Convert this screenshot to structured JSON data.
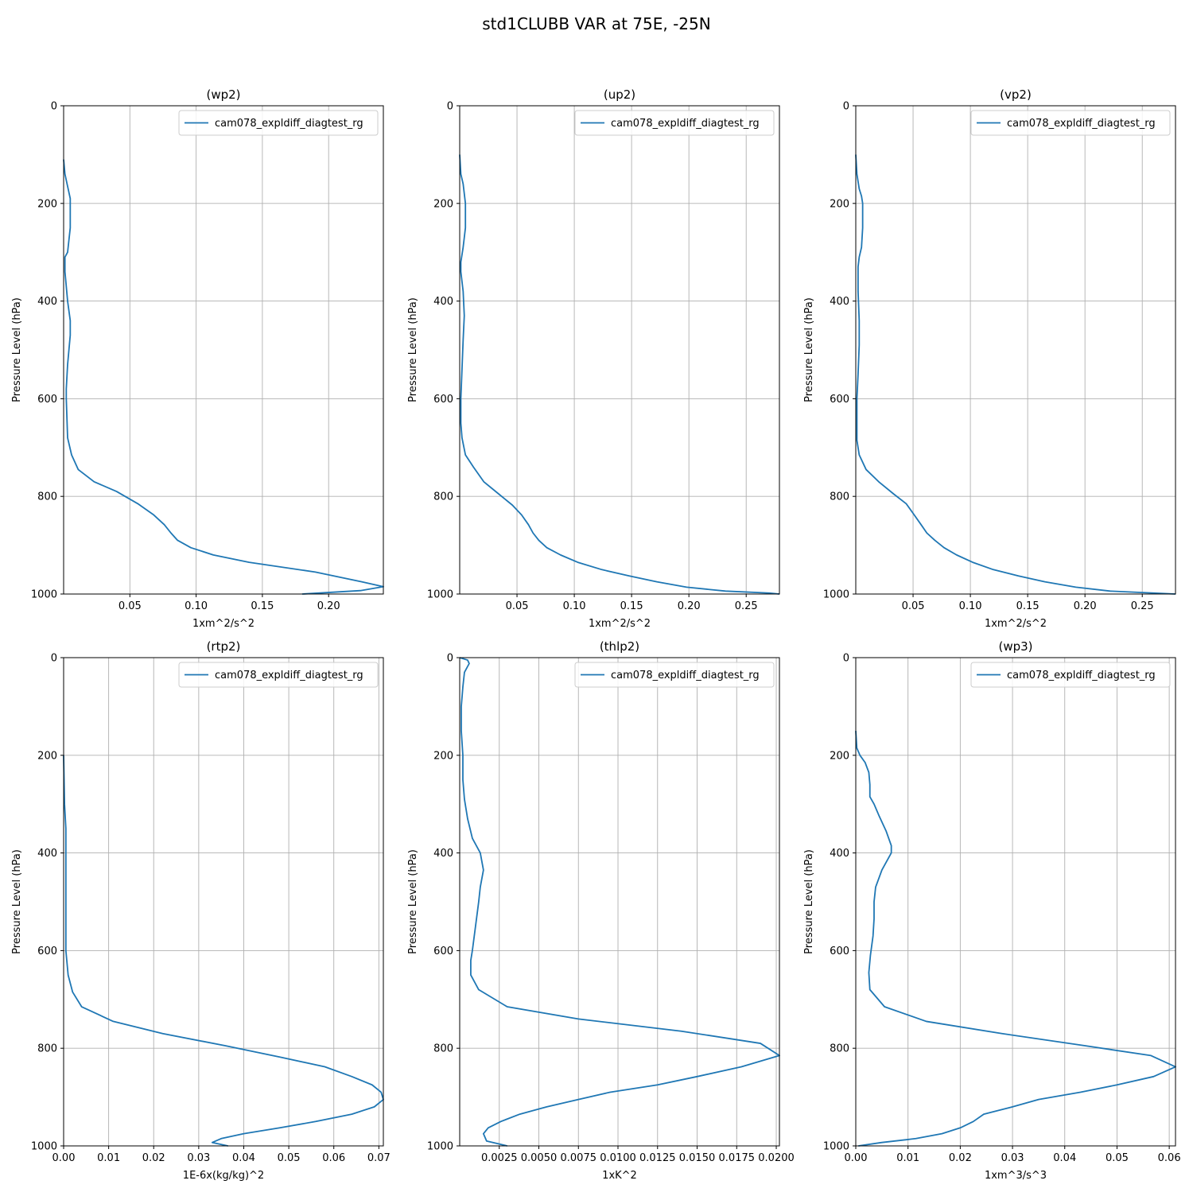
{
  "figure_title": "std1CLUBB VAR at 75E, -25N",
  "colors": {
    "series": "#1f77b4",
    "grid": "#b0b0b0",
    "axes": "#000000",
    "legend_border": "#cccccc"
  },
  "chart_data": [
    {
      "type": "line",
      "title": "(wp2)",
      "xlabel": "1xm^2/s^2",
      "ylabel": "Pressure Level (hPa)",
      "xlim": [
        0,
        0.2413
      ],
      "ylim": [
        1000,
        0
      ],
      "xticks": [
        0.05,
        0.1,
        0.15,
        0.2
      ],
      "xtick_labels": [
        "0.05",
        "0.10",
        "0.15",
        "0.20"
      ],
      "yticks": [
        0,
        200,
        400,
        600,
        800,
        1000
      ],
      "ytick_labels": [
        "0",
        "200",
        "400",
        "600",
        "800",
        "1000"
      ],
      "legend": "cam078_expldiff_diagtest_rg",
      "series": [
        {
          "name": "cam078_expldiff_diagtest_rg",
          "x": [
            0,
            0.001,
            0.003,
            0.005,
            0.005,
            0.005,
            0.003,
            0.001,
            0.001,
            0.003,
            0.005,
            0.005,
            0.003,
            0.002,
            0.002,
            0.003,
            0.006,
            0.011,
            0.023,
            0.04,
            0.056,
            0.068,
            0.076,
            0.081,
            0.086,
            0.096,
            0.113,
            0.14,
            0.19,
            0.225,
            0.2413,
            0.224,
            0.18
          ],
          "y": [
            110,
            140,
            165,
            190,
            200,
            250,
            300,
            310,
            340,
            400,
            440,
            470,
            530,
            580,
            600,
            680,
            715,
            745,
            770,
            790,
            815,
            838,
            858,
            875,
            890,
            905,
            920,
            935,
            955,
            975,
            985,
            993,
            1000
          ]
        }
      ]
    },
    {
      "type": "line",
      "title": "(up2)",
      "xlabel": "1xm^2/s^2",
      "ylabel": "Pressure Level (hPa)",
      "xlim": [
        0,
        0.279
      ],
      "ylim": [
        1000,
        0
      ],
      "xticks": [
        0.05,
        0.1,
        0.15,
        0.2,
        0.25
      ],
      "xtick_labels": [
        "0.05",
        "0.10",
        "0.15",
        "0.20",
        "0.25"
      ],
      "yticks": [
        0,
        200,
        400,
        600,
        800,
        1000
      ],
      "ytick_labels": [
        "0",
        "200",
        "400",
        "600",
        "800",
        "1000"
      ],
      "legend": "cam078_expldiff_diagtest_rg",
      "series": [
        {
          "name": "cam078_expldiff_diagtest_rg",
          "x": [
            0,
            0.001,
            0.003,
            0.004,
            0.005,
            0.005,
            0.003,
            0.001,
            0.001,
            0.003,
            0.004,
            0.003,
            0.002,
            0.001,
            0.001,
            0.002,
            0.005,
            0.012,
            0.021,
            0.034,
            0.046,
            0.054,
            0.06,
            0.064,
            0.069,
            0.076,
            0.088,
            0.103,
            0.124,
            0.148,
            0.172,
            0.198,
            0.232,
            0.27,
            0.279
          ],
          "y": [
            100,
            140,
            160,
            180,
            200,
            250,
            290,
            320,
            340,
            380,
            430,
            480,
            540,
            600,
            650,
            680,
            715,
            740,
            770,
            795,
            818,
            838,
            858,
            875,
            890,
            905,
            920,
            935,
            950,
            963,
            975,
            986,
            994,
            998,
            1000
          ]
        }
      ]
    },
    {
      "type": "line",
      "title": "(vp2)",
      "xlabel": "1xm^2/s^2",
      "ylabel": "Pressure Level (hPa)",
      "xlim": [
        0,
        0.279
      ],
      "ylim": [
        1000,
        0
      ],
      "xticks": [
        0.05,
        0.1,
        0.15,
        0.2,
        0.25
      ],
      "xtick_labels": [
        "0.05",
        "0.10",
        "0.15",
        "0.20",
        "0.25"
      ],
      "yticks": [
        0,
        200,
        400,
        600,
        800,
        1000
      ],
      "ytick_labels": [
        "0",
        "200",
        "400",
        "600",
        "800",
        "1000"
      ],
      "legend": "cam078_expldiff_diagtest_rg",
      "series": [
        {
          "name": "cam078_expldiff_diagtest_rg",
          "x": [
            0,
            0.001,
            0.003,
            0.005,
            0.006,
            0.006,
            0.005,
            0.003,
            0.002,
            0.002,
            0.003,
            0.003,
            0.002,
            0.001,
            0.001,
            0.001,
            0.003,
            0.009,
            0.02,
            0.033,
            0.044,
            0.051,
            0.057,
            0.062,
            0.069,
            0.077,
            0.088,
            0.102,
            0.12,
            0.142,
            0.165,
            0.192,
            0.222,
            0.26,
            0.279
          ],
          "y": [
            100,
            140,
            170,
            185,
            200,
            250,
            290,
            310,
            330,
            380,
            440,
            490,
            550,
            600,
            640,
            685,
            715,
            745,
            770,
            795,
            815,
            838,
            858,
            875,
            890,
            905,
            920,
            935,
            950,
            963,
            975,
            986,
            994,
            998,
            1000
          ]
        }
      ]
    },
    {
      "type": "line",
      "title": "(rtp2)",
      "xlabel": "1E-6x(kg/kg)^2",
      "ylabel": "Pressure Level (hPa)",
      "xlim": [
        0,
        0.071
      ],
      "ylim": [
        1000,
        0
      ],
      "xticks": [
        0.0,
        0.01,
        0.02,
        0.03,
        0.04,
        0.05,
        0.06,
        0.07
      ],
      "xtick_labels": [
        "0.00",
        "0.01",
        "0.02",
        "0.03",
        "0.04",
        "0.05",
        "0.06",
        "0.07"
      ],
      "yticks": [
        0,
        200,
        400,
        600,
        800,
        1000
      ],
      "ytick_labels": [
        "0",
        "200",
        "400",
        "600",
        "800",
        "1000"
      ],
      "legend": "cam078_expldiff_diagtest_rg",
      "series": [
        {
          "name": "cam078_expldiff_diagtest_rg",
          "x": [
            0,
            0.0002,
            0.0005,
            0.0005,
            0.0005,
            0.0005,
            0.0005,
            0.001,
            0.002,
            0.004,
            0.011,
            0.022,
            0.036,
            0.048,
            0.058,
            0.064,
            0.0685,
            0.0705,
            0.071,
            0.069,
            0.064,
            0.056,
            0.048,
            0.04,
            0.035,
            0.033,
            0.0365
          ],
          "y": [
            200,
            300,
            350,
            400,
            450,
            500,
            600,
            650,
            685,
            715,
            745,
            770,
            795,
            818,
            838,
            858,
            875,
            890,
            905,
            920,
            935,
            950,
            963,
            975,
            985,
            993,
            1000
          ]
        }
      ]
    },
    {
      "type": "line",
      "title": "(thlp2)",
      "xlabel": "1xK^2",
      "ylabel": "Pressure Level (hPa)",
      "xlim": [
        0,
        0.0202
      ],
      "ylim": [
        1000,
        0
      ],
      "xticks": [
        0.0025,
        0.005,
        0.0075,
        0.01,
        0.0125,
        0.015,
        0.0175,
        0.02
      ],
      "xtick_labels": [
        "0.0025",
        "0.0050",
        "0.0075",
        "0.0100",
        "0.0125",
        "0.0150",
        "0.0175",
        "0.0200"
      ],
      "yticks": [
        0,
        200,
        400,
        600,
        800,
        1000
      ],
      "ytick_labels": [
        "0",
        "200",
        "400",
        "600",
        "800",
        "1000"
      ],
      "legend": "cam078_expldiff_diagtest_rg",
      "series": [
        {
          "name": "cam078_expldiff_diagtest_rg",
          "x": [
            0,
            0.0005,
            0.0006,
            0.0003,
            0.0002,
            0.0001,
            0.0001,
            0.0002,
            0.0002,
            0.0003,
            0.0005,
            0.0008,
            0.0013,
            0.0015,
            0.0013,
            0.0012,
            0.001,
            0.0008,
            0.0007,
            0.0007,
            0.0012,
            0.003,
            0.0075,
            0.014,
            0.019,
            0.0202,
            0.0178,
            0.015,
            0.0125,
            0.0095,
            0.0075,
            0.0055,
            0.0038,
            0.0026,
            0.0018,
            0.0015,
            0.0017,
            0.003
          ],
          "y": [
            0,
            5,
            12,
            30,
            60,
            100,
            150,
            200,
            250,
            290,
            330,
            370,
            400,
            435,
            470,
            500,
            550,
            600,
            620,
            650,
            680,
            715,
            740,
            765,
            790,
            815,
            838,
            858,
            875,
            890,
            905,
            920,
            935,
            950,
            963,
            975,
            990,
            1000
          ]
        }
      ]
    },
    {
      "type": "line",
      "title": "(wp3)",
      "xlabel": "1xm^3/s^3",
      "ylabel": "Pressure Level (hPa)",
      "xlim": [
        0,
        0.0612
      ],
      "ylim": [
        1000,
        0
      ],
      "xticks": [
        0.0,
        0.01,
        0.02,
        0.03,
        0.04,
        0.05,
        0.06
      ],
      "xtick_labels": [
        "0.00",
        "0.01",
        "0.02",
        "0.03",
        "0.04",
        "0.05",
        "0.06"
      ],
      "yticks": [
        0,
        200,
        400,
        600,
        800,
        1000
      ],
      "ytick_labels": [
        "0",
        "200",
        "400",
        "600",
        "800",
        "1000"
      ],
      "legend": "cam078_expldiff_diagtest_rg",
      "series": [
        {
          "name": "cam078_expldiff_diagtest_rg",
          "x": [
            0,
            0.0002,
            0.0008,
            0.0018,
            0.0025,
            0.0027,
            0.0027,
            0.0035,
            0.0045,
            0.0058,
            0.0068,
            0.0068,
            0.005,
            0.0038,
            0.0035,
            0.0035,
            0.0033,
            0.0028,
            0.0025,
            0.0027,
            0.0055,
            0.0135,
            0.028,
            0.044,
            0.0565,
            0.0612,
            0.057,
            0.05,
            0.043,
            0.035,
            0.03,
            0.0245,
            0.0225,
            0.02,
            0.0165,
            0.0115,
            0.005,
            0.0005
          ],
          "y": [
            150,
            185,
            200,
            215,
            235,
            260,
            285,
            300,
            325,
            355,
            385,
            400,
            435,
            470,
            500,
            535,
            570,
            610,
            645,
            680,
            715,
            745,
            770,
            795,
            815,
            838,
            858,
            875,
            890,
            905,
            920,
            935,
            950,
            963,
            975,
            985,
            993,
            1000
          ]
        }
      ]
    }
  ]
}
